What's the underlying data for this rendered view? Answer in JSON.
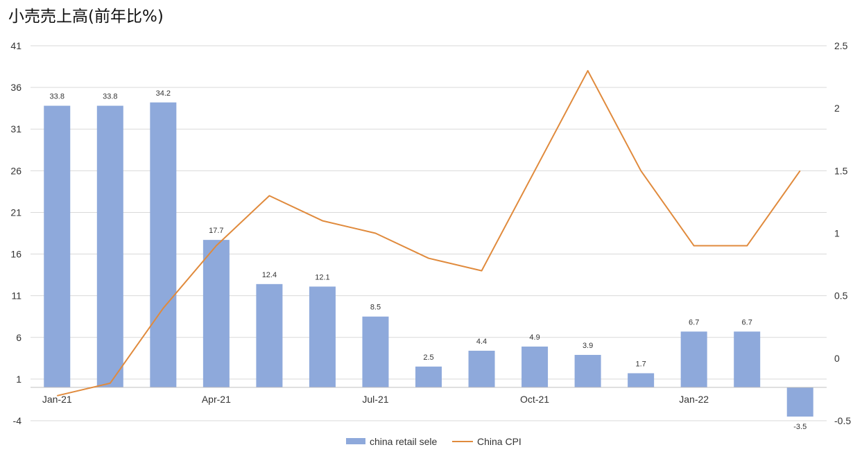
{
  "chart_data": {
    "type": "bar+line",
    "title": "小売売上高(前年比%)",
    "x": [
      "Jan-21",
      "Feb-21",
      "Mar-21",
      "Apr-21",
      "May-21",
      "Jun-21",
      "Jul-21",
      "Aug-21",
      "Sep-21",
      "Oct-21",
      "Nov-21",
      "Dec-21",
      "Jan-22",
      "Feb-22",
      "Mar-22"
    ],
    "x_tick_labels": [
      "Jan-21",
      "",
      "",
      "Apr-21",
      "",
      "",
      "Jul-21",
      "",
      "",
      "Oct-21",
      "",
      "",
      "Jan-22",
      "",
      ""
    ],
    "series": [
      {
        "name": "china retail sele",
        "type": "bar",
        "axis": "left",
        "color": "#8EA9DB",
        "values": [
          33.8,
          33.8,
          34.2,
          17.7,
          12.4,
          12.1,
          8.5,
          2.5,
          4.4,
          4.9,
          3.9,
          1.7,
          6.7,
          6.7,
          -3.5
        ],
        "labels": [
          "33.8",
          "33.8",
          "34.2",
          "17.7",
          "12.4",
          "12.1",
          "8.5",
          "2.5",
          "4.4",
          "4.9",
          "3.9",
          "1.7",
          "6.7",
          "6.7",
          "-3.5"
        ]
      },
      {
        "name": "China CPI",
        "type": "line",
        "axis": "right",
        "color": "#E08A3C",
        "values": [
          -0.3,
          -0.2,
          0.4,
          0.9,
          1.3,
          1.1,
          1.0,
          0.8,
          0.7,
          1.5,
          2.3,
          1.5,
          0.9,
          0.9,
          1.5
        ]
      }
    ],
    "y_left": {
      "ylim": [
        -4,
        41
      ],
      "ticks": [
        -4,
        1,
        6,
        11,
        16,
        21,
        26,
        31,
        36,
        41
      ],
      "tick_labels": [
        "-4",
        "1",
        "6",
        "11",
        "16",
        "21",
        "26",
        "31",
        "36",
        "41"
      ]
    },
    "y_right": {
      "ylim": [
        -0.5,
        2.5
      ],
      "ticks": [
        -0.5,
        0,
        0.5,
        1,
        1.5,
        2,
        2.5
      ],
      "tick_labels": [
        "-0.5",
        "0",
        "0.5",
        "1",
        "1.5",
        "2",
        "2.5"
      ]
    },
    "grid": true,
    "legend": {
      "position": "bottom",
      "entries": [
        "china retail sele",
        "China CPI"
      ]
    },
    "colors": {
      "gridline": "#D9D9D9",
      "axis_line": "#BFBFBF"
    }
  }
}
